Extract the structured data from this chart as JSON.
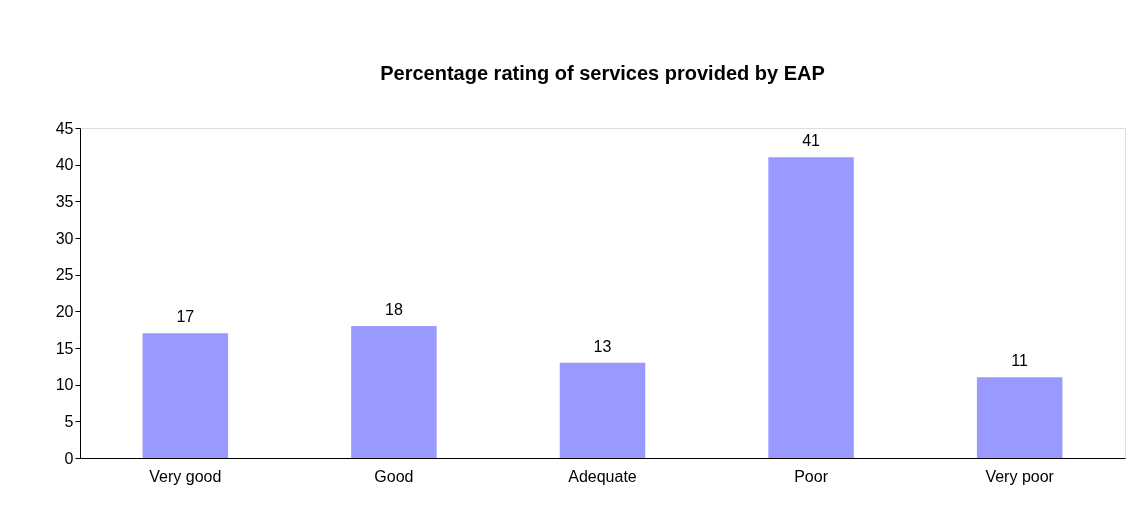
{
  "chart_data": {
    "type": "bar",
    "title": "Percentage rating of services provided by EAP",
    "categories": [
      "Very good",
      "Good",
      "Adequate",
      "Poor",
      "Very poor"
    ],
    "values": [
      17,
      18,
      13,
      41,
      11
    ],
    "color": "#9999ff",
    "ylim": [
      0,
      45
    ],
    "yticks": [
      0,
      5,
      10,
      15,
      20,
      25,
      30,
      35,
      40,
      45
    ],
    "data_labels": true,
    "grid": false
  }
}
